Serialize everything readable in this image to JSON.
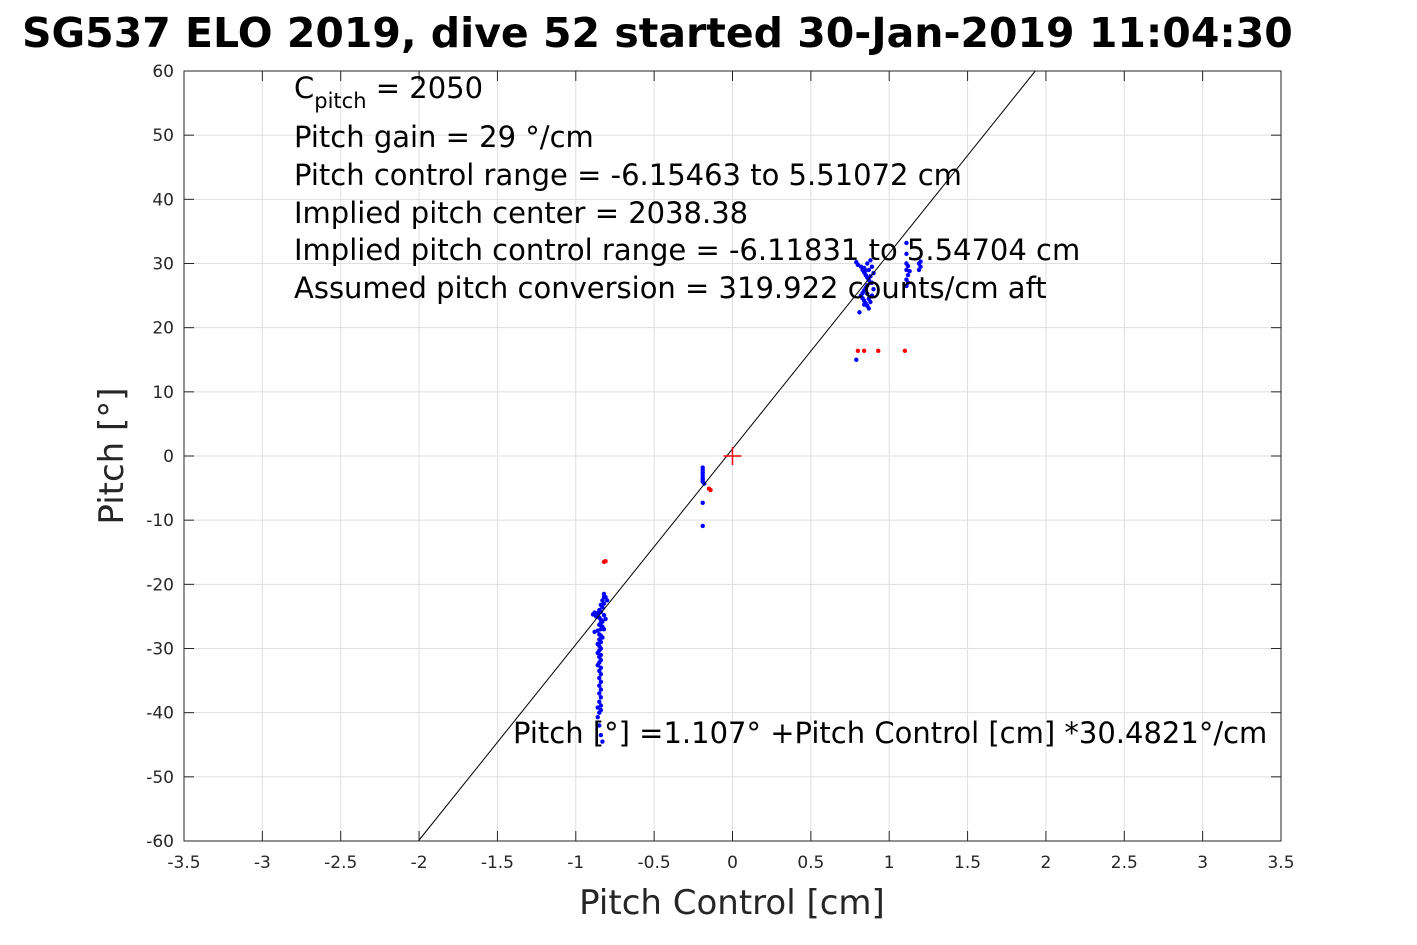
{
  "chart_data": {
    "type": "scatter",
    "title": "SG537 ELO 2019, dive 52 started 30-Jan-2019 11:04:30",
    "xlabel": "Pitch Control [cm]",
    "ylabel": "Pitch [°]",
    "xlim": [
      -3.5,
      3.5
    ],
    "ylim": [
      -60,
      60
    ],
    "xticks": [
      -3.5,
      -3,
      -2.5,
      -2,
      -1.5,
      -1,
      -0.5,
      0,
      0.5,
      1,
      1.5,
      2,
      2.5,
      3,
      3.5
    ],
    "xtick_labels": [
      "-3.5",
      "-3",
      "-2.5",
      "-2",
      "-1.5",
      "-1",
      "-0.5",
      "0",
      "0.5",
      "1",
      "1.5",
      "2",
      "2.5",
      "3",
      "3.5"
    ],
    "yticks": [
      -60,
      -50,
      -40,
      -30,
      -20,
      -10,
      0,
      10,
      20,
      30,
      40,
      50,
      60
    ],
    "ytick_labels": [
      "-60",
      "-50",
      "-40",
      "-30",
      "-20",
      "-10",
      "0",
      "10",
      "20",
      "30",
      "40",
      "50",
      "60"
    ],
    "grid": true,
    "annotations": {
      "c_pitch_symbol": "C",
      "c_pitch_subscript": "pitch",
      "c_pitch_value": " = 2050",
      "lines": [
        "Pitch gain = 29 °/cm",
        "Pitch control range = -6.15463 to 5.51072 cm",
        "Implied pitch center = 2038.38",
        "Implied pitch control range = -6.11831 to 5.54704 cm",
        "Assumed pitch conversion = 319.922 counts/cm aft"
      ],
      "fit_equation": "Pitch [°] =1.107° +Pitch Control [cm] *30.4821°/cm"
    },
    "fit_line": {
      "intercept": 1.107,
      "slope": 30.4821,
      "color": "#000000"
    },
    "center_marker": {
      "x": 0,
      "y": 0,
      "color": "#ff0000",
      "marker": "plus"
    },
    "series": [
      {
        "color": "#0000ff",
        "points": [
          [
            -0.82,
            -21.5
          ],
          [
            -0.82,
            -22.0
          ],
          [
            -0.83,
            -22.5
          ],
          [
            -0.82,
            -23.0
          ],
          [
            -0.84,
            -23.2
          ],
          [
            -0.83,
            -23.6
          ],
          [
            -0.85,
            -24.0
          ],
          [
            -0.84,
            -24.3
          ],
          [
            -0.86,
            -24.5
          ],
          [
            -0.87,
            -24.6
          ],
          [
            -0.88,
            -24.4
          ],
          [
            -0.89,
            -24.7
          ],
          [
            -0.87,
            -25.0
          ],
          [
            -0.85,
            -25.2
          ],
          [
            -0.84,
            -25.5
          ],
          [
            -0.83,
            -25.8
          ],
          [
            -0.84,
            -26.0
          ],
          [
            -0.85,
            -26.3
          ],
          [
            -0.83,
            -26.6
          ],
          [
            -0.84,
            -27.0
          ],
          [
            -0.86,
            -27.2
          ],
          [
            -0.88,
            -27.4
          ],
          [
            -0.85,
            -27.8
          ],
          [
            -0.84,
            -28.0
          ],
          [
            -0.83,
            -28.3
          ],
          [
            -0.85,
            -28.6
          ],
          [
            -0.84,
            -29.0
          ],
          [
            -0.86,
            -29.3
          ],
          [
            -0.85,
            -29.6
          ],
          [
            -0.84,
            -30.0
          ],
          [
            -0.85,
            -30.3
          ],
          [
            -0.86,
            -30.7
          ],
          [
            -0.84,
            -31.0
          ],
          [
            -0.85,
            -31.3
          ],
          [
            -0.84,
            -31.8
          ],
          [
            -0.85,
            -32.2
          ],
          [
            -0.86,
            -32.6
          ],
          [
            -0.84,
            -33.0
          ],
          [
            -0.85,
            -33.5
          ],
          [
            -0.84,
            -34.0
          ],
          [
            -0.85,
            -34.6
          ],
          [
            -0.84,
            -35.2
          ],
          [
            -0.85,
            -35.8
          ],
          [
            -0.84,
            -36.4
          ],
          [
            -0.85,
            -37.0
          ],
          [
            -0.84,
            -37.6
          ],
          [
            -0.85,
            -38.3
          ],
          [
            -0.84,
            -38.9
          ],
          [
            -0.86,
            -39.2
          ],
          [
            -0.84,
            -39.6
          ],
          [
            -0.85,
            -40.0
          ],
          [
            -0.86,
            -40.7
          ],
          [
            -0.85,
            -42.0
          ],
          [
            -0.84,
            -43.5
          ],
          [
            -0.83,
            -44.5
          ],
          [
            -0.81,
            -22.0
          ],
          [
            -0.8,
            -22.5
          ],
          [
            -0.82,
            -24.8
          ],
          [
            -0.81,
            -25.4
          ],
          [
            -0.82,
            -27.0
          ],
          [
            -0.19,
            -1.8
          ],
          [
            -0.19,
            -2.2
          ],
          [
            -0.19,
            -2.6
          ],
          [
            -0.19,
            -3.0
          ],
          [
            -0.19,
            -3.4
          ],
          [
            -0.19,
            -3.7
          ],
          [
            -0.19,
            -4.0
          ],
          [
            -0.18,
            -4.3
          ],
          [
            -0.19,
            -7.3
          ],
          [
            -0.19,
            -10.9
          ],
          [
            0.79,
            30.2
          ],
          [
            0.8,
            29.8
          ],
          [
            0.82,
            29.5
          ],
          [
            0.83,
            29.0
          ],
          [
            0.84,
            28.6
          ],
          [
            0.85,
            28.2
          ],
          [
            0.86,
            27.8
          ],
          [
            0.87,
            27.4
          ],
          [
            0.88,
            27.0
          ],
          [
            0.86,
            26.6
          ],
          [
            0.85,
            26.2
          ],
          [
            0.84,
            25.8
          ],
          [
            0.83,
            25.4
          ],
          [
            0.82,
            25.0
          ],
          [
            0.83,
            24.6
          ],
          [
            0.84,
            24.2
          ],
          [
            0.85,
            23.8
          ],
          [
            0.86,
            23.4
          ],
          [
            0.87,
            23.0
          ],
          [
            0.88,
            24.0
          ],
          [
            0.89,
            25.0
          ],
          [
            0.9,
            26.0
          ],
          [
            0.89,
            27.0
          ],
          [
            0.88,
            28.0
          ],
          [
            0.87,
            29.0
          ],
          [
            0.86,
            30.0
          ],
          [
            0.88,
            30.5
          ],
          [
            0.89,
            29.5
          ],
          [
            0.9,
            28.5
          ],
          [
            0.84,
            29.3
          ],
          [
            0.85,
            28.9
          ],
          [
            0.86,
            25.3
          ],
          [
            0.87,
            24.5
          ],
          [
            0.84,
            23.6
          ],
          [
            0.81,
            22.4
          ],
          [
            0.79,
            15.0
          ],
          [
            1.11,
            33.2
          ],
          [
            1.11,
            31.5
          ],
          [
            1.11,
            30.0
          ],
          [
            1.11,
            29.0
          ],
          [
            1.12,
            28.2
          ],
          [
            1.11,
            27.5
          ],
          [
            1.12,
            27.0
          ],
          [
            1.11,
            26.5
          ],
          [
            1.13,
            28.8
          ],
          [
            1.12,
            29.6
          ],
          [
            1.19,
            30.0
          ],
          [
            1.2,
            29.5
          ],
          [
            1.19,
            29.0
          ],
          [
            1.2,
            30.3
          ]
        ]
      },
      {
        "color": "#ff0000",
        "points": [
          [
            -0.82,
            -16.5
          ],
          [
            -0.81,
            -16.4
          ],
          [
            -0.15,
            -5.1
          ],
          [
            -0.14,
            -5.3
          ],
          [
            0.8,
            16.4
          ],
          [
            0.84,
            16.4
          ],
          [
            0.93,
            16.4
          ],
          [
            1.1,
            16.4
          ]
        ]
      }
    ]
  }
}
